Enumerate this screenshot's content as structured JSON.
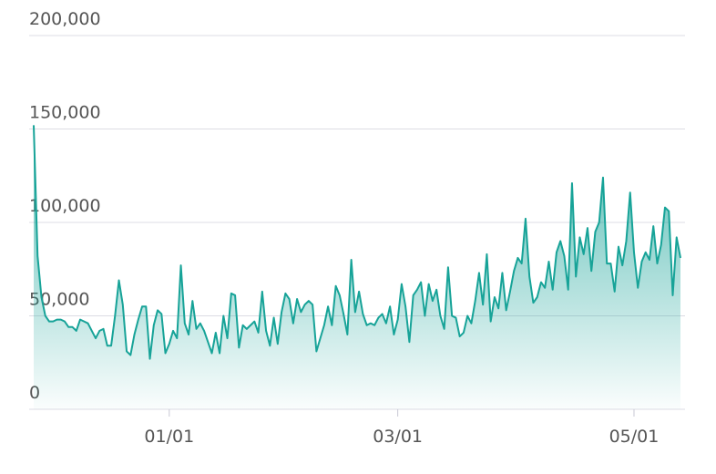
{
  "chart_data": {
    "type": "area",
    "x": [
      "11/27",
      "11/28",
      "11/29",
      "11/30",
      "12/01",
      "12/02",
      "12/03",
      "12/04",
      "12/05",
      "12/06",
      "12/07",
      "12/08",
      "12/09",
      "12/10",
      "12/11",
      "12/12",
      "12/13",
      "12/14",
      "12/15",
      "12/16",
      "12/17",
      "12/18",
      "12/19",
      "12/20",
      "12/21",
      "12/22",
      "12/23",
      "12/24",
      "12/25",
      "12/26",
      "12/27",
      "12/28",
      "12/29",
      "12/30",
      "12/31",
      "01/01",
      "01/02",
      "01/03",
      "01/04",
      "01/05",
      "01/06",
      "01/07",
      "01/08",
      "01/09",
      "01/10",
      "01/11",
      "01/12",
      "01/13",
      "01/14",
      "01/15",
      "01/16",
      "01/17",
      "01/18",
      "01/19",
      "01/20",
      "01/21",
      "01/22",
      "01/23",
      "01/24",
      "01/25",
      "01/26",
      "01/27",
      "01/28",
      "01/29",
      "01/30",
      "01/31",
      "02/01",
      "02/02",
      "02/03",
      "02/04",
      "02/05",
      "02/06",
      "02/07",
      "02/08",
      "02/09",
      "02/10",
      "02/11",
      "02/12",
      "02/13",
      "02/14",
      "02/15",
      "02/16",
      "02/17",
      "02/18",
      "02/19",
      "02/20",
      "02/21",
      "02/22",
      "02/23",
      "02/24",
      "02/25",
      "02/26",
      "02/27",
      "02/28",
      "03/01",
      "03/02",
      "03/03",
      "03/04",
      "03/05",
      "03/06",
      "03/07",
      "03/08",
      "03/09",
      "03/10",
      "03/11",
      "03/12",
      "03/13",
      "03/14",
      "03/15",
      "03/16",
      "03/17",
      "03/18",
      "03/19",
      "03/20",
      "03/21",
      "03/22",
      "03/23",
      "03/24",
      "03/25",
      "03/26",
      "03/27",
      "03/28",
      "03/29",
      "03/30",
      "03/31",
      "04/01",
      "04/02",
      "04/03",
      "04/04",
      "04/05",
      "04/06",
      "04/07",
      "04/08",
      "04/09",
      "04/10",
      "04/11",
      "04/12",
      "04/13",
      "04/14",
      "04/15",
      "04/16",
      "04/17",
      "04/18",
      "04/19",
      "04/20",
      "04/21",
      "04/22",
      "04/23",
      "04/24",
      "04/25",
      "04/26",
      "04/27",
      "04/28",
      "04/29",
      "04/30",
      "05/01",
      "05/02",
      "05/03",
      "05/04",
      "05/05",
      "05/06",
      "05/07",
      "05/08",
      "05/09",
      "05/10",
      "05/11",
      "05/12",
      "05/13"
    ],
    "values": [
      152000,
      82000,
      60000,
      50000,
      47000,
      47000,
      48000,
      48000,
      47000,
      44000,
      44000,
      42000,
      48000,
      47000,
      46000,
      42000,
      38000,
      42000,
      43000,
      34000,
      34000,
      50000,
      69000,
      56000,
      31000,
      29000,
      40000,
      48000,
      55000,
      55000,
      27000,
      45000,
      53000,
      51000,
      30000,
      35000,
      42000,
      38000,
      77000,
      46000,
      40000,
      58000,
      43000,
      46000,
      42000,
      36000,
      30000,
      41000,
      30000,
      50000,
      38000,
      62000,
      61000,
      33000,
      45000,
      43000,
      45000,
      47000,
      41000,
      63000,
      42000,
      34000,
      49000,
      35000,
      52000,
      62000,
      59000,
      46000,
      59000,
      52000,
      56000,
      58000,
      56000,
      31000,
      38000,
      45000,
      55000,
      45000,
      66000,
      61000,
      51000,
      40000,
      80000,
      52000,
      63000,
      51000,
      45000,
      46000,
      45000,
      49000,
      51000,
      46000,
      55000,
      40000,
      48000,
      67000,
      55000,
      36000,
      61000,
      64000,
      68000,
      50000,
      67000,
      58000,
      64000,
      50000,
      43000,
      76000,
      50000,
      49000,
      39000,
      41000,
      50000,
      46000,
      58000,
      73000,
      56000,
      83000,
      47000,
      60000,
      54000,
      73000,
      53000,
      63000,
      74000,
      81000,
      78000,
      102000,
      71000,
      57000,
      60000,
      68000,
      65000,
      79000,
      64000,
      84000,
      90000,
      82000,
      64000,
      121000,
      71000,
      92000,
      83000,
      97000,
      74000,
      95000,
      100000,
      124000,
      78000,
      78000,
      63000,
      87000,
      77000,
      90000,
      116000,
      84000,
      65000,
      79000,
      84000,
      80000,
      98000,
      78000,
      88000,
      108000,
      106000,
      61000,
      92000,
      81000
    ],
    "color": "#17a398",
    "ylim": [
      0,
      200000
    ],
    "yticks": [
      0,
      {
        "value": 50000,
        "label": "50,000"
      },
      {
        "value": 100000,
        "label": "100,000"
      },
      {
        "value": 150000,
        "label": "150,000"
      },
      {
        "value": 200000,
        "label": "200,000"
      }
    ],
    "xticks": [
      "01/01",
      "03/01",
      "05/01"
    ],
    "grid": true
  }
}
